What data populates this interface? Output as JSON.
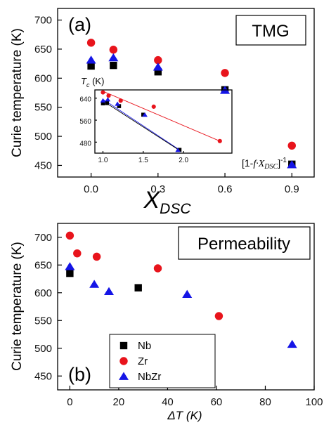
{
  "colors": {
    "Nb": "#000000",
    "Zr": "#e8141c",
    "NbZr": "#1515e6"
  },
  "chart_data": [
    {
      "id": "a",
      "panel_label": "(a)",
      "box_label": "TMG",
      "type": "scatter",
      "xlabel": "X",
      "xlabel_sub": "DSC",
      "ylabel": "Curie temperature (K)",
      "xlim": [
        -0.15,
        1.0
      ],
      "ylim": [
        430,
        720
      ],
      "xticks": [
        {
          "value": 0.0,
          "label": "0.0"
        },
        {
          "value": 0.3,
          "label": "0.3"
        },
        {
          "value": 0.6,
          "label": "0.6"
        },
        {
          "value": 0.9,
          "label": "0.9"
        }
      ],
      "yticks": [
        {
          "value": 450,
          "label": "450"
        },
        {
          "value": 500,
          "label": "500"
        },
        {
          "value": 550,
          "label": "550"
        },
        {
          "value": 600,
          "label": "600"
        },
        {
          "value": 650,
          "label": "650"
        },
        {
          "value": 700,
          "label": "700"
        }
      ],
      "series": [
        {
          "name": "Nb",
          "marker": "square",
          "points": [
            [
              0.0,
              621
            ],
            [
              0.1,
              622
            ],
            [
              0.3,
              611
            ],
            [
              0.6,
              580
            ],
            [
              0.9,
              452
            ]
          ]
        },
        {
          "name": "Zr",
          "marker": "circle",
          "points": [
            [
              0.0,
              661
            ],
            [
              0.1,
              649
            ],
            [
              0.3,
              631
            ],
            [
              0.6,
              609
            ],
            [
              0.9,
              484
            ]
          ]
        },
        {
          "name": "NbZr",
          "marker": "triangle",
          "points": [
            [
              0.0,
              631
            ],
            [
              0.1,
              635
            ],
            [
              0.3,
              619
            ],
            [
              0.6,
              579
            ],
            [
              0.9,
              451
            ]
          ]
        }
      ],
      "inset": {
        "ylabel": "T",
        "ylabel_sub": "c",
        "ylabel_unit": " (K)",
        "xlabel_pre": "[1-",
        "xlabel_f": "f",
        "xlabel_mid": "·X",
        "xlabel_sub": "DSC",
        "xlabel_post": "]",
        "xlabel_sup": "-1",
        "xlim": [
          0.9,
          2.6
        ],
        "ylim": [
          440,
          670
        ],
        "xticks": [
          {
            "value": 1.0,
            "label": "1.0"
          },
          {
            "value": 1.5,
            "label": "1.5"
          },
          {
            "value": 2.0,
            "label": "2.0"
          }
        ],
        "yticks": [
          {
            "value": 480,
            "label": "480"
          },
          {
            "value": 560,
            "label": "560"
          },
          {
            "value": 640,
            "label": "640"
          }
        ],
        "series": [
          {
            "name": "Nb",
            "marker": "square",
            "points": [
              [
                1.0,
                621
              ],
              [
                1.05,
                622
              ],
              [
                1.2,
                611
              ],
              [
                1.5,
                580
              ],
              [
                1.95,
                452
              ]
            ]
          },
          {
            "name": "Zr",
            "marker": "circle",
            "points": [
              [
                1.0,
                661
              ],
              [
                1.07,
                649
              ],
              [
                1.22,
                631
              ],
              [
                1.63,
                609
              ],
              [
                2.45,
                484
              ]
            ]
          },
          {
            "name": "NbZr",
            "marker": "triangle",
            "points": [
              [
                1.0,
                631
              ],
              [
                1.06,
                635
              ],
              [
                1.18,
                619
              ],
              [
                1.52,
                579
              ],
              [
                1.93,
                451
              ]
            ]
          }
        ],
        "fits": [
          {
            "name": "Zr",
            "from": [
              1.0,
              665
            ],
            "to": [
              2.45,
              484
            ]
          },
          {
            "name": "NbZr",
            "from": [
              1.0,
              636
            ],
            "to": [
              1.95,
              452
            ]
          },
          {
            "name": "Nb",
            "from": [
              1.0,
              630
            ],
            "to": [
              1.95,
              450
            ]
          }
        ]
      }
    },
    {
      "id": "b",
      "panel_label": "(b)",
      "box_label": "Permeability",
      "type": "scatter",
      "xlabel": "ΔT (K)",
      "ylabel": "Curie temperature (K)",
      "xlim": [
        -5,
        100
      ],
      "ylim": [
        425,
        725
      ],
      "xticks": [
        {
          "value": 0,
          "label": "0"
        },
        {
          "value": 20,
          "label": "20"
        },
        {
          "value": 40,
          "label": "40"
        },
        {
          "value": 60,
          "label": "60"
        },
        {
          "value": 80,
          "label": "80"
        },
        {
          "value": 100,
          "label": "100"
        }
      ],
      "yticks": [
        {
          "value": 450,
          "label": "450"
        },
        {
          "value": 500,
          "label": "500"
        },
        {
          "value": 550,
          "label": "550"
        },
        {
          "value": 600,
          "label": "600"
        },
        {
          "value": 650,
          "label": "650"
        },
        {
          "value": 700,
          "label": "700"
        }
      ],
      "series": [
        {
          "name": "Nb",
          "marker": "square",
          "points": [
            [
              0,
              635
            ],
            [
              28,
              609
            ]
          ]
        },
        {
          "name": "Zr",
          "marker": "circle",
          "points": [
            [
              0,
              703
            ],
            [
              3,
              671
            ],
            [
              11,
              665
            ],
            [
              36,
              644
            ],
            [
              61,
              558
            ]
          ]
        },
        {
          "name": "NbZr",
          "marker": "triangle",
          "points": [
            [
              0,
              647
            ],
            [
              10,
              615
            ],
            [
              16,
              602
            ],
            [
              48,
              597
            ],
            [
              91,
              507
            ]
          ]
        }
      ],
      "legend": {
        "position": "lower-left",
        "entries": [
          "Nb",
          "Zr",
          "NbZr"
        ]
      }
    }
  ]
}
